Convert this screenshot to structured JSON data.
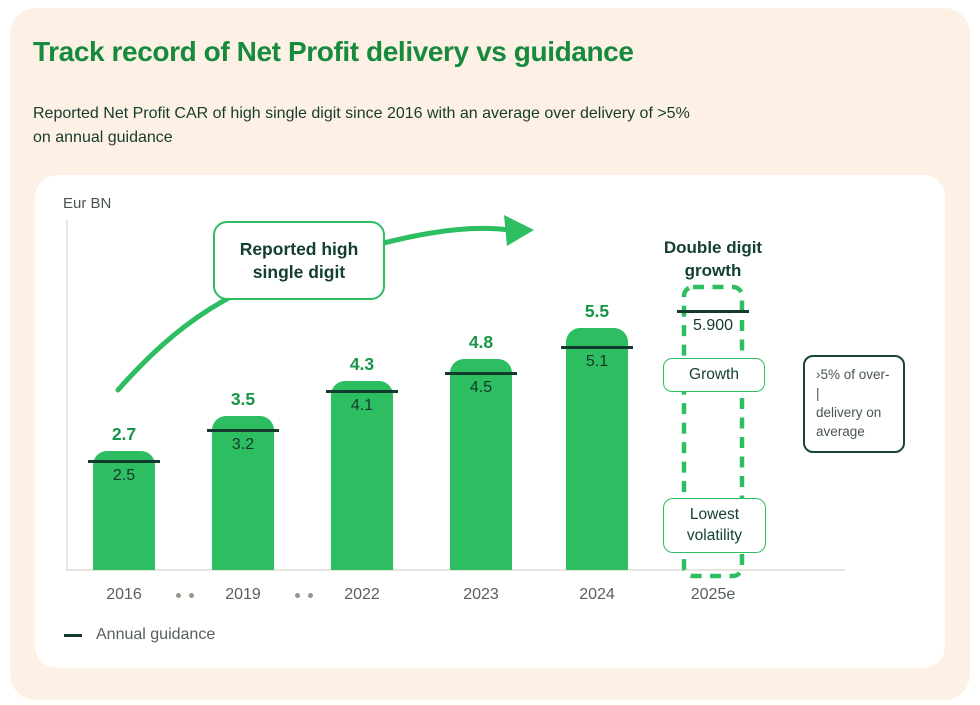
{
  "header": {
    "title": "Track record of Net Profit delivery vs guidance",
    "subtitle_line1": "Reported Net Profit CAR of high single digit since 2016 with an average over delivery of >5%",
    "subtitle_line2": "on annual guidance"
  },
  "chart_data": {
    "type": "bar",
    "title": "Track record of Net Profit delivery vs guidance",
    "unit_label": "Eur BN",
    "categories": [
      "2016",
      "2019",
      "2022",
      "2023",
      "2024",
      "2025e"
    ],
    "series": [
      {
        "name": "Reported Net Profit",
        "values": [
          2.7,
          3.5,
          4.3,
          4.8,
          5.5,
          null
        ]
      },
      {
        "name": "Annual guidance",
        "values": [
          2.5,
          3.2,
          4.1,
          4.5,
          5.1,
          5.9
        ]
      }
    ],
    "reported_labels": [
      "2.7",
      "3.5",
      "4.3",
      "4.8",
      "5.5",
      ""
    ],
    "guidance_labels": [
      "2.5",
      "3.2",
      "4.1",
      "4.5",
      "5.1",
      "5.900"
    ],
    "forecast_category": "2025e",
    "forecast_bar_style": "dashed-outline",
    "gap_dots_after": [
      "2016",
      "2019"
    ],
    "ylim": [
      0,
      7
    ],
    "grid": false,
    "legend_position": "bottom-left"
  },
  "annotations": {
    "callout_line1": "Reported high",
    "callout_line2": "single digit",
    "forecast_heading_line1": "Double digit",
    "forecast_heading_line2": "growth",
    "growth_box": "Growth",
    "volatility_box_line1": "Lowest",
    "volatility_box_line2": "volatility",
    "side_note_line1": "›5% of over-|",
    "side_note_line2": "delivery on",
    "side_note_line3": "average"
  },
  "legend": {
    "label": "Annual guidance"
  },
  "colors": {
    "accent_green": "#2EBE62",
    "title_green": "#168A3D",
    "dark_green": "#123F2F",
    "guidance_line": "#123B2E",
    "note_border": "#17453C",
    "background_peach": "#FDF0E5",
    "card_white": "#FFFFFF",
    "axis_gray": "#E8E4DE",
    "label_gray": "#575F5A"
  }
}
